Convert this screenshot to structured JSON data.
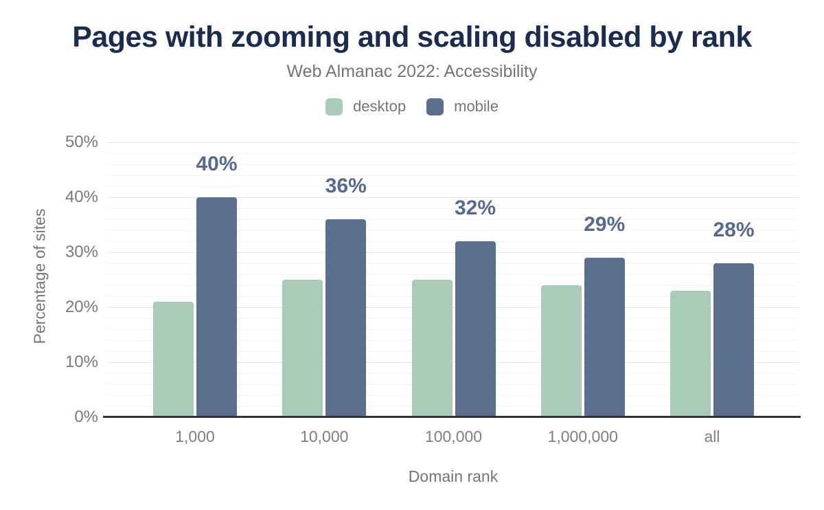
{
  "chart_data": {
    "type": "bar",
    "title": "Pages with zooming and scaling disabled by rank",
    "subtitle": "Web Almanac 2022: Accessibility",
    "xlabel": "Domain rank",
    "ylabel": "Percentage of sites",
    "categories": [
      "1,000",
      "10,000",
      "100,000",
      "1,000,000",
      "all"
    ],
    "series": [
      {
        "name": "desktop",
        "color": "#a9cbb8",
        "values": [
          21,
          25,
          25,
          24,
          23
        ],
        "data_labels": [
          "",
          "",
          "",
          "",
          ""
        ]
      },
      {
        "name": "mobile",
        "color": "#5c6e8e",
        "values": [
          40,
          36,
          32,
          29,
          28
        ],
        "data_labels": [
          "40%",
          "36%",
          "32%",
          "29%",
          "28%"
        ]
      }
    ],
    "ylim": [
      0,
      50
    ],
    "yticks": [
      {
        "value": 0,
        "label": "0%"
      },
      {
        "value": 10,
        "label": "10%"
      },
      {
        "value": 20,
        "label": "20%"
      },
      {
        "value": 30,
        "label": "30%"
      },
      {
        "value": 40,
        "label": "40%"
      },
      {
        "value": 50,
        "label": "50%"
      }
    ],
    "grid": "major horizontal every 10%, minor every 2%",
    "legend_position": "top"
  },
  "colors": {
    "title": "#1c2c4e",
    "subtitle": "#757575",
    "desktop": "#a9cbb8",
    "mobile": "#5c6e8e",
    "value_label": "#56698e",
    "axis_line": "#303238"
  }
}
